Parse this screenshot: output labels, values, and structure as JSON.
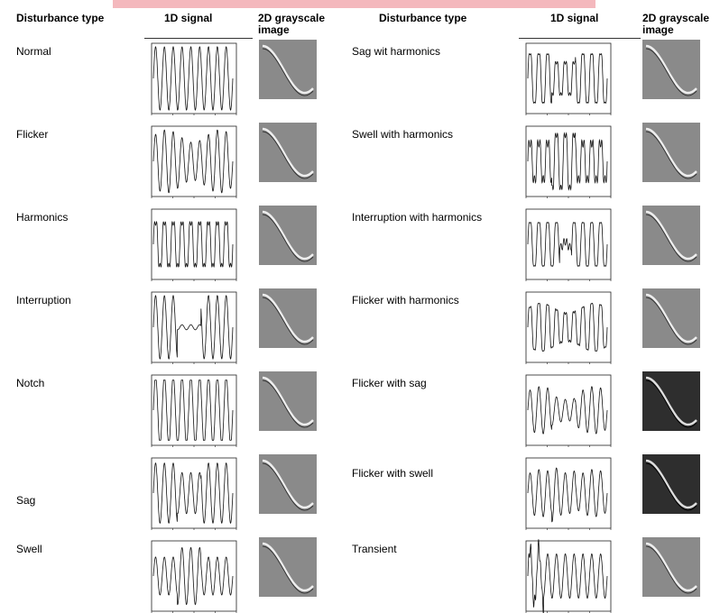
{
  "header": {
    "columns": [
      "Disturbance type",
      "1D signal",
      "2D grayscale image",
      "Disturbance type",
      "1D signal",
      "2D grayscale image"
    ]
  },
  "table": {
    "left": [
      "Normal",
      "Flicker",
      "Harmonics",
      "Interruption",
      "Notch",
      "Sag",
      "Swell"
    ],
    "right": [
      "Sag wit harmonics",
      "Swell with harmonics",
      "Interruption with harmonics",
      "Flicker with harmonics",
      "Flicker with sag",
      "Flicker with swell",
      "Transient"
    ]
  }
}
